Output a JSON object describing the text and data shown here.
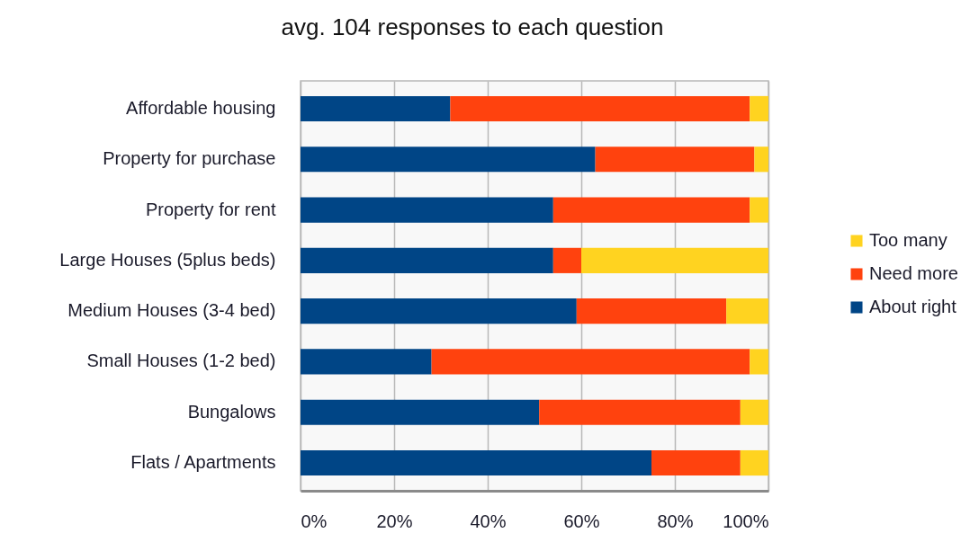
{
  "chart_data": {
    "type": "bar",
    "title": "avg. 104 responses to each question",
    "orientation": "horizontal",
    "stacked": true,
    "categories": [
      "Affordable housing",
      "Property for purchase",
      "Property for rent",
      "Large Houses (5plus beds)",
      "Medium Houses (3-4 bed)",
      "Small Houses (1-2 bed)",
      "Bungalows",
      "Flats / Apartments"
    ],
    "series": [
      {
        "name": "About right",
        "color": "#004586",
        "values": [
          32,
          63,
          54,
          54,
          59,
          28,
          51,
          75
        ]
      },
      {
        "name": "Need more",
        "color": "#ff420e",
        "values": [
          64,
          34,
          42,
          6,
          32,
          68,
          43,
          19
        ]
      },
      {
        "name": "Too many",
        "color": "#ffd320",
        "values": [
          4,
          3,
          4,
          40,
          9,
          4,
          6,
          6
        ]
      }
    ],
    "xlim": [
      0,
      100
    ],
    "xticks": [
      {
        "value": 0,
        "label": "0%"
      },
      {
        "value": 20,
        "label": "20%"
      },
      {
        "value": 40,
        "label": "40%"
      },
      {
        "value": 60,
        "label": "60%"
      },
      {
        "value": 80,
        "label": "80%"
      },
      {
        "value": 100,
        "label": "100%"
      }
    ],
    "grid": "x",
    "legend": "right"
  }
}
